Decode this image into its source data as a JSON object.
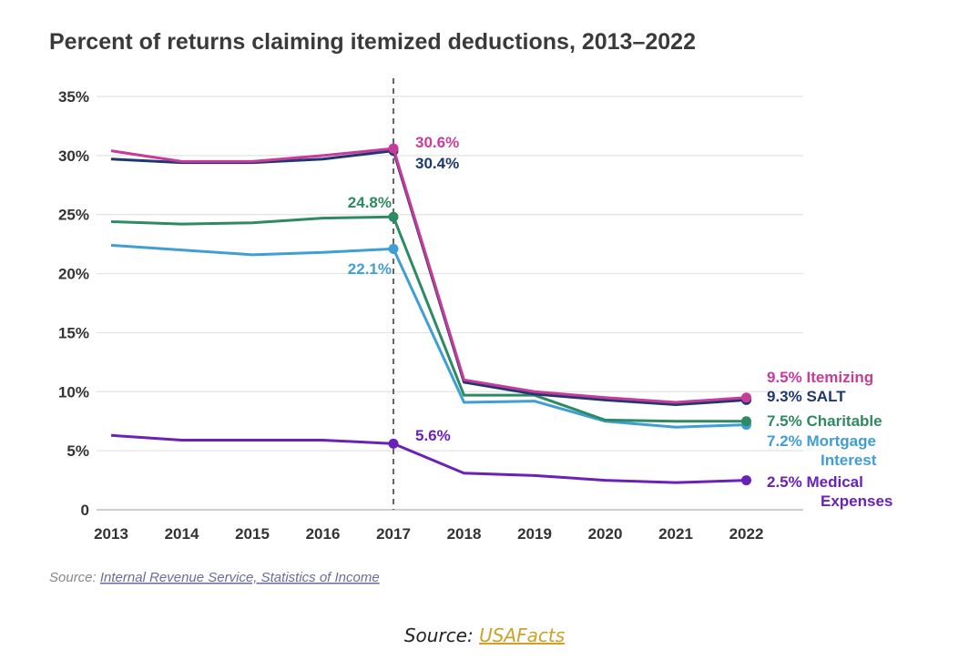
{
  "chart_data": {
    "type": "line",
    "title": "Percent of returns claiming itemized deductions, 2013–2022",
    "x": [
      "2013",
      "2014",
      "2015",
      "2016",
      "2017",
      "2018",
      "2019",
      "2020",
      "2021",
      "2022"
    ],
    "ylim": [
      0,
      35
    ],
    "yticks": [
      0,
      5,
      10,
      15,
      20,
      25,
      30,
      35
    ],
    "ytick_labels": [
      "0",
      "5%",
      "10%",
      "15%",
      "20%",
      "25%",
      "30%",
      "35%"
    ],
    "grid": true,
    "reference_line_x": "2017",
    "series": [
      {
        "key": "itemizing",
        "color": "#c73b9b",
        "values": [
          30.4,
          29.5,
          29.5,
          30.0,
          30.6,
          11.0,
          10.0,
          9.5,
          9.1,
          9.5
        ],
        "end_label": [
          "9.5% Itemizing"
        ],
        "marker_label": "30.6%"
      },
      {
        "key": "salt",
        "color": "#1f3770",
        "values": [
          29.7,
          29.4,
          29.4,
          29.7,
          30.4,
          10.8,
          9.8,
          9.3,
          8.9,
          9.3
        ],
        "end_label": [
          "9.3% SALT"
        ],
        "marker_label": "30.4%"
      },
      {
        "key": "charitable",
        "color": "#2e8a62",
        "values": [
          24.4,
          24.2,
          24.3,
          24.7,
          24.8,
          9.7,
          9.7,
          7.6,
          7.5,
          7.5
        ],
        "end_label": [
          "7.5% Charitable"
        ],
        "marker_label": "24.8%"
      },
      {
        "key": "mortgage",
        "color": "#3f9ed3",
        "values": [
          22.4,
          22.0,
          21.6,
          21.8,
          22.1,
          9.1,
          9.2,
          7.5,
          7.0,
          7.2
        ],
        "end_label": [
          "7.2% Mortgage",
          "Interest"
        ],
        "marker_label": "22.1%"
      },
      {
        "key": "medical",
        "color": "#6a21b8",
        "values": [
          6.3,
          5.9,
          5.9,
          5.9,
          5.6,
          3.1,
          2.9,
          2.5,
          2.3,
          2.5
        ],
        "end_label": [
          "2.5% Medical",
          "Expenses"
        ],
        "marker_label": "5.6%"
      }
    ]
  },
  "source": {
    "prefix": "Source: ",
    "link": "Internal Revenue Service, Statistics of Income"
  },
  "credit": {
    "prefix": "Source: ",
    "link": "USAFacts"
  }
}
